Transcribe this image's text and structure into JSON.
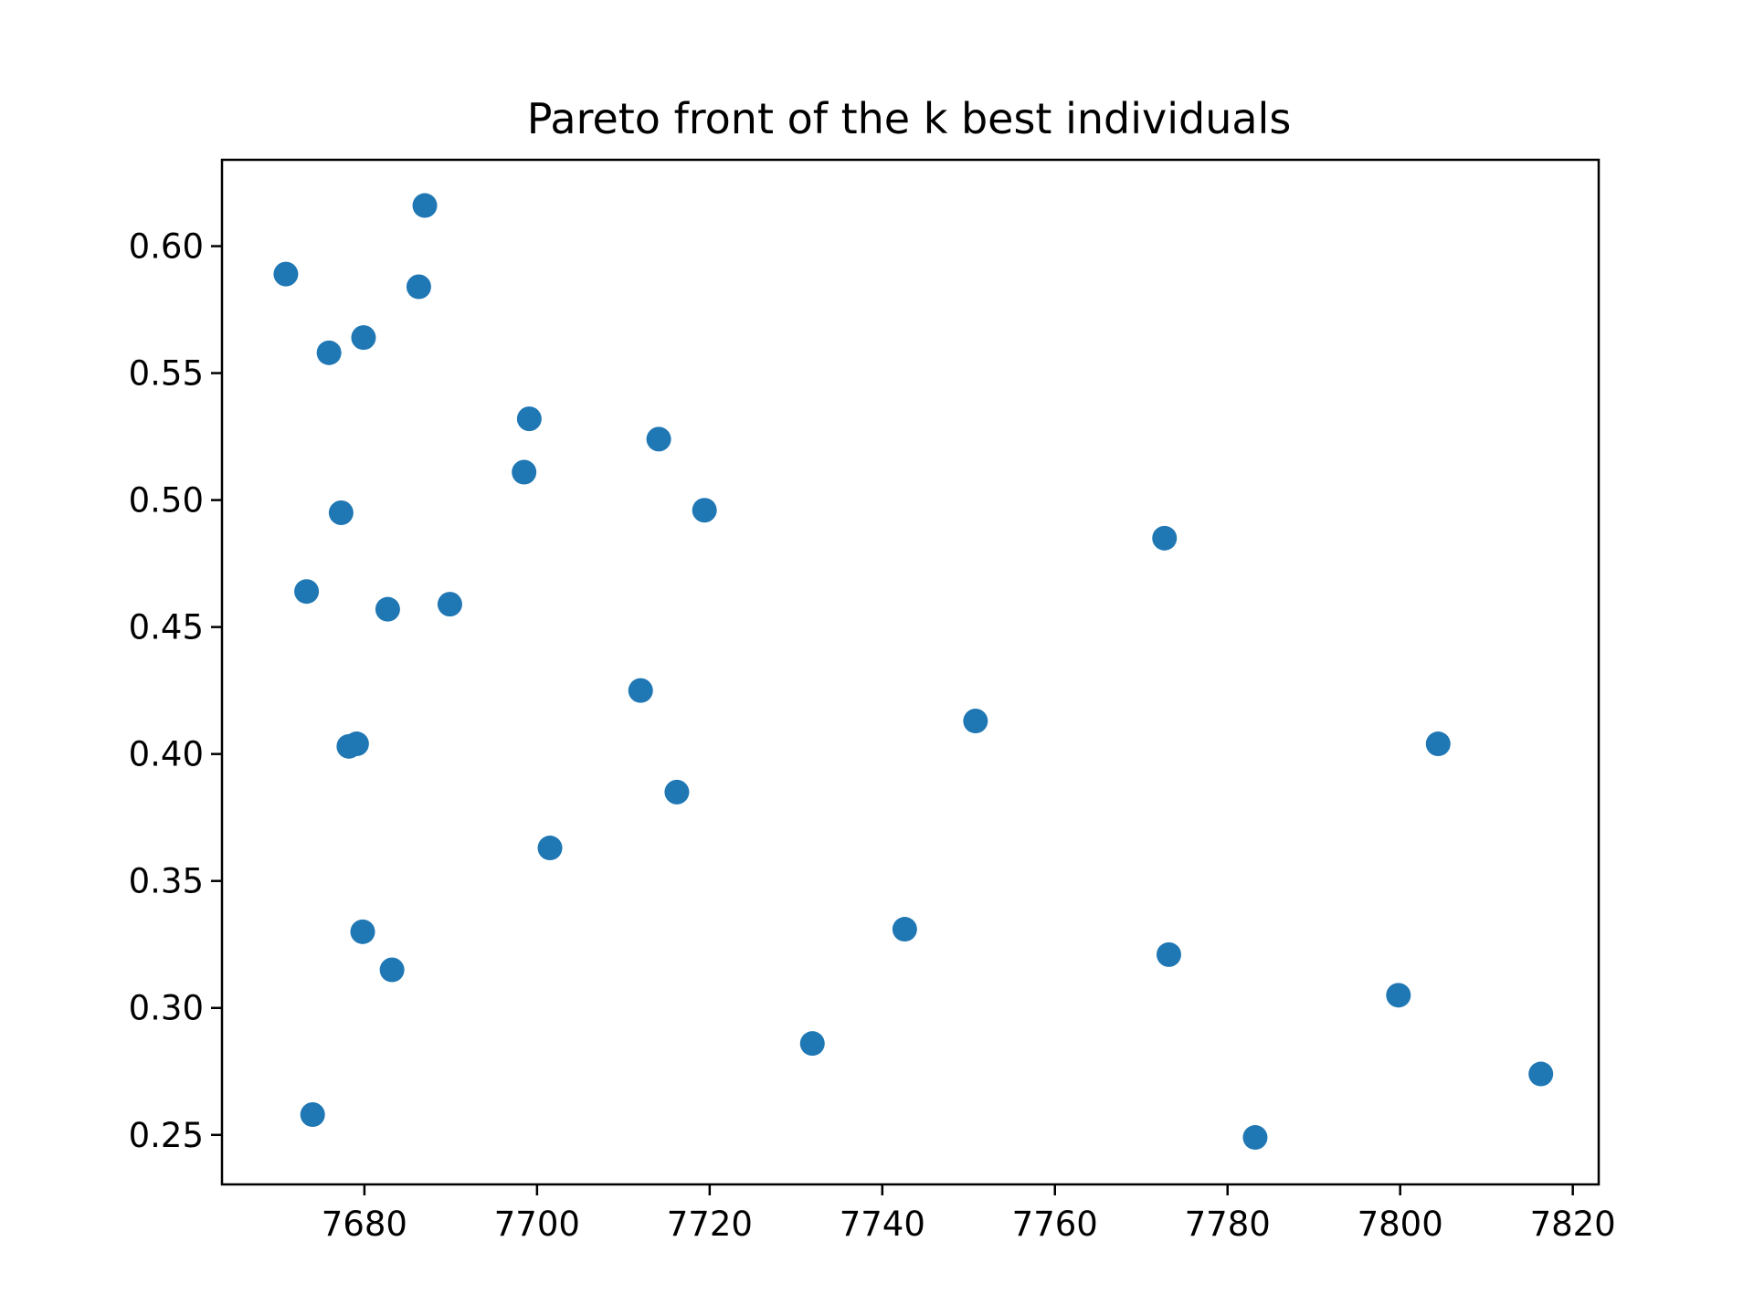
{
  "chart_data": {
    "type": "scatter",
    "title": "Pareto front of the k best individuals",
    "xlabel": "",
    "ylabel": "",
    "xlim": [
      7663.5,
      7823.0
    ],
    "ylim": [
      0.2305,
      0.634
    ],
    "grid": false,
    "marker_color": "#1f77b4",
    "x_ticks": [
      7680,
      7700,
      7720,
      7740,
      7760,
      7780,
      7800,
      7820
    ],
    "x_tick_labels": [
      "7680",
      "7700",
      "7720",
      "7740",
      "7760",
      "7780",
      "7800",
      "7820"
    ],
    "y_ticks": [
      0.25,
      0.3,
      0.35,
      0.4,
      0.45,
      0.5,
      0.55,
      0.6
    ],
    "y_tick_labels": [
      "0.25",
      "0.30",
      "0.35",
      "0.40",
      "0.45",
      "0.50",
      "0.55",
      "0.60"
    ],
    "series": [
      {
        "name": "individuals",
        "points": [
          [
            7670.9,
            0.589
          ],
          [
            7687.0,
            0.616
          ],
          [
            7686.3,
            0.584
          ],
          [
            7675.9,
            0.558
          ],
          [
            7679.9,
            0.564
          ],
          [
            7699.1,
            0.532
          ],
          [
            7698.5,
            0.511
          ],
          [
            7714.1,
            0.524
          ],
          [
            7719.4,
            0.496
          ],
          [
            7677.3,
            0.495
          ],
          [
            7673.3,
            0.464
          ],
          [
            7682.7,
            0.457
          ],
          [
            7689.9,
            0.459
          ],
          [
            7772.7,
            0.485
          ],
          [
            7712.0,
            0.425
          ],
          [
            7750.8,
            0.413
          ],
          [
            7678.2,
            0.403
          ],
          [
            7679.1,
            0.404
          ],
          [
            7804.4,
            0.404
          ],
          [
            7716.2,
            0.385
          ],
          [
            7701.5,
            0.363
          ],
          [
            7679.8,
            0.33
          ],
          [
            7742.6,
            0.331
          ],
          [
            7683.2,
            0.315
          ],
          [
            7773.2,
            0.321
          ],
          [
            7799.8,
            0.305
          ],
          [
            7731.9,
            0.286
          ],
          [
            7816.3,
            0.274
          ],
          [
            7674.0,
            0.258
          ],
          [
            7783.2,
            0.249
          ]
        ]
      }
    ]
  }
}
